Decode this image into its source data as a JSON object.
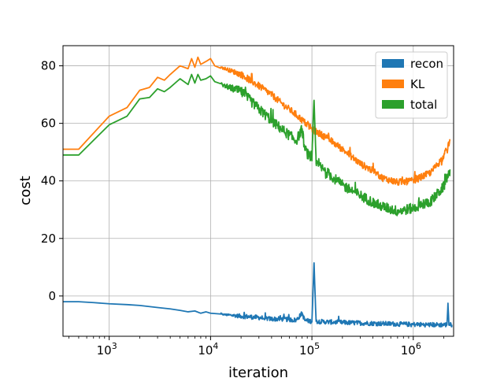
{
  "chart_data": {
    "type": "line",
    "xlabel": "iteration",
    "ylabel": "cost",
    "xscale": "log",
    "xlim": [
      350,
      2500000
    ],
    "ylim": [
      -14,
      87
    ],
    "grid": true,
    "legend_position": "top-right",
    "x_ticks": [
      {
        "value": 1000,
        "base": "10",
        "exp": "3"
      },
      {
        "value": 10000,
        "base": "10",
        "exp": "4"
      },
      {
        "value": 100000,
        "base": "10",
        "exp": "5"
      },
      {
        "value": 1000000,
        "base": "10",
        "exp": "6"
      }
    ],
    "y_ticks": [
      0,
      20,
      40,
      60,
      80
    ],
    "series": [
      {
        "name": "recon",
        "color": "#1f77b4",
        "points": [
          [
            350,
            -2
          ],
          [
            500,
            -2
          ],
          [
            700,
            -2.3
          ],
          [
            1000,
            -2.7
          ],
          [
            1500,
            -3
          ],
          [
            2000,
            -3.3
          ],
          [
            3000,
            -4
          ],
          [
            4000,
            -4.5
          ],
          [
            5000,
            -5
          ],
          [
            6000,
            -5.5
          ],
          [
            7000,
            -5.2
          ],
          [
            8000,
            -6
          ],
          [
            9000,
            -5.5
          ],
          [
            10000,
            -6
          ],
          [
            14000,
            -6.5
          ],
          [
            20000,
            -7
          ],
          [
            30000,
            -7.5
          ],
          [
            40000,
            -8
          ],
          [
            50000,
            -8
          ],
          [
            70000,
            -8.4
          ],
          [
            80000,
            -6
          ],
          [
            85000,
            -8.5
          ],
          [
            100000,
            -8.8
          ],
          [
            105000,
            11.5
          ],
          [
            110000,
            -8.8
          ],
          [
            140000,
            -9
          ],
          [
            200000,
            -9.2
          ],
          [
            300000,
            -9.4
          ],
          [
            500000,
            -9.6
          ],
          [
            800000,
            -9.8
          ],
          [
            1500000,
            -10
          ],
          [
            2150000,
            -10
          ],
          [
            2200000,
            -2.5
          ],
          [
            2250000,
            -10
          ],
          [
            2400000,
            -10
          ]
        ],
        "noise": 0.8
      },
      {
        "name": "KL",
        "color": "#ff7f0e",
        "points": [
          [
            350,
            51
          ],
          [
            500,
            51
          ],
          [
            1000,
            62.5
          ],
          [
            1500,
            65.5
          ],
          [
            2000,
            71.5
          ],
          [
            2500,
            72.5
          ],
          [
            3000,
            76
          ],
          [
            3500,
            75
          ],
          [
            4000,
            77
          ],
          [
            5000,
            80
          ],
          [
            6000,
            79
          ],
          [
            6500,
            82.5
          ],
          [
            7000,
            79.5
          ],
          [
            7500,
            83
          ],
          [
            8000,
            80.5
          ],
          [
            9000,
            81.5
          ],
          [
            10000,
            82.5
          ],
          [
            11000,
            80
          ],
          [
            14000,
            79
          ],
          [
            20000,
            77
          ],
          [
            30000,
            73
          ],
          [
            40000,
            70
          ],
          [
            50000,
            67
          ],
          [
            70000,
            63
          ],
          [
            100000,
            58
          ],
          [
            140000,
            55
          ],
          [
            200000,
            51
          ],
          [
            300000,
            46
          ],
          [
            400000,
            43.5
          ],
          [
            500000,
            41
          ],
          [
            700000,
            39.5
          ],
          [
            1000000,
            40
          ],
          [
            1500000,
            43
          ],
          [
            2000000,
            48.5
          ],
          [
            2300000,
            54
          ]
        ],
        "noise": 1.2
      },
      {
        "name": "total",
        "color": "#2ca02c",
        "points": [
          [
            350,
            49
          ],
          [
            500,
            49
          ],
          [
            1000,
            59.5
          ],
          [
            1500,
            62.5
          ],
          [
            2000,
            68.5
          ],
          [
            2500,
            69
          ],
          [
            3000,
            72
          ],
          [
            3500,
            71
          ],
          [
            4000,
            72.5
          ],
          [
            5000,
            75.5
          ],
          [
            6000,
            73.5
          ],
          [
            6500,
            77
          ],
          [
            7000,
            74
          ],
          [
            7500,
            77
          ],
          [
            8000,
            75
          ],
          [
            9000,
            75.5
          ],
          [
            10000,
            76.5
          ],
          [
            11000,
            74.5
          ],
          [
            14000,
            73
          ],
          [
            20000,
            71
          ],
          [
            30000,
            65
          ],
          [
            40000,
            61
          ],
          [
            50000,
            58
          ],
          [
            70000,
            54
          ],
          [
            80000,
            58
          ],
          [
            85000,
            51
          ],
          [
            100000,
            47
          ],
          [
            105000,
            68
          ],
          [
            110000,
            46
          ],
          [
            140000,
            43
          ],
          [
            200000,
            38.5
          ],
          [
            300000,
            35
          ],
          [
            400000,
            32.5
          ],
          [
            500000,
            31
          ],
          [
            700000,
            29.5
          ],
          [
            1000000,
            30.5
          ],
          [
            1500000,
            33
          ],
          [
            2000000,
            38
          ],
          [
            2300000,
            44
          ]
        ],
        "noise": 1.8
      }
    ]
  }
}
